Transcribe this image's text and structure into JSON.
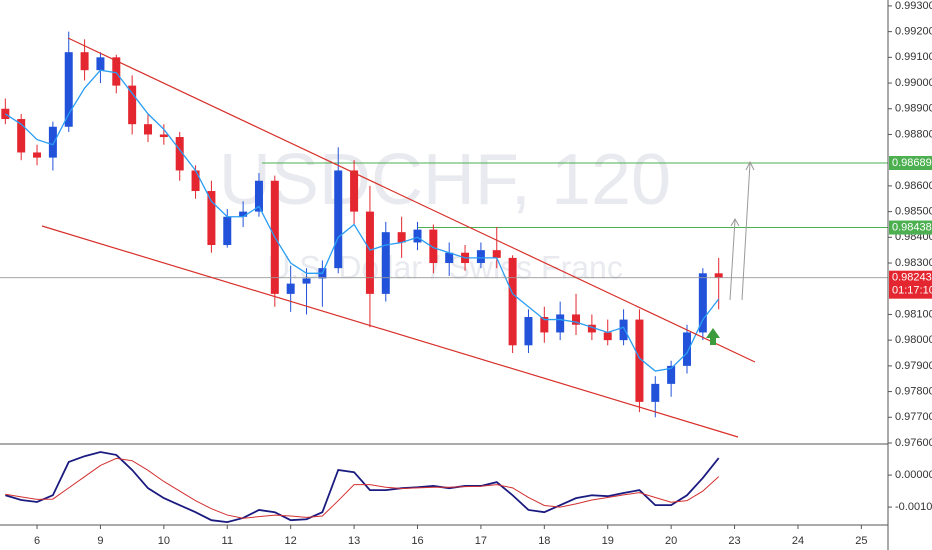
{
  "chart_data": {
    "type": "candlestick",
    "watermark": "USDCHF, 120",
    "watermark_subtitle": "U.S. Dollar / Swiss Franc",
    "up_color": "#2152d9",
    "down_color": "#e3262f",
    "ma_color": "#2a9df4",
    "x": [
      -0.5,
      -0.25,
      0,
      0.25,
      0.5,
      0.75,
      1,
      1.25,
      1.5,
      1.75,
      2,
      2.25,
      2.5,
      2.75,
      3,
      3.25,
      3.5,
      3.75,
      4,
      4.25,
      4.5,
      4.75,
      5,
      5.25,
      5.5,
      5.75,
      6,
      6.25,
      6.5,
      6.75,
      7,
      7.25,
      7.5,
      7.75,
      8,
      8.25,
      8.5,
      8.75,
      9,
      9.25,
      9.5,
      9.75,
      10,
      10.25,
      10.5,
      10.75
    ],
    "open": [
      0.989,
      0.9886,
      0.9873,
      0.9871,
      0.9883,
      0.9912,
      0.9905,
      0.991,
      0.9899,
      0.9884,
      0.988,
      0.9879,
      0.9866,
      0.9858,
      0.9837,
      0.9848,
      0.985,
      0.9862,
      0.9818,
      0.9822,
      0.9824,
      0.9828,
      0.9866,
      0.985,
      0.9818,
      0.9842,
      0.9838,
      0.9843,
      0.983,
      0.9834,
      0.983,
      0.9835,
      0.9832,
      0.9798,
      0.9809,
      0.9803,
      0.981,
      0.9806,
      0.9803,
      0.98,
      0.9808,
      0.9776,
      0.9783,
      0.979,
      0.9803,
      0.9826
    ],
    "high": [
      0.9894,
      0.9888,
      0.9876,
      0.9885,
      0.992,
      0.9917,
      0.9912,
      0.9911,
      0.9903,
      0.9888,
      0.9884,
      0.9881,
      0.9868,
      0.9862,
      0.9851,
      0.9854,
      0.9865,
      0.9864,
      0.9829,
      0.9828,
      0.9831,
      0.9875,
      0.987,
      0.986,
      0.9846,
      0.9848,
      0.9846,
      0.9845,
      0.9838,
      0.9837,
      0.9838,
      0.9844,
      0.9833,
      0.9812,
      0.9813,
      0.9815,
      0.9818,
      0.981,
      0.9808,
      0.9812,
      0.9812,
      0.9786,
      0.9792,
      0.9806,
      0.9828,
      0.9832
    ],
    "low": [
      0.9884,
      0.987,
      0.9868,
      0.9866,
      0.9881,
      0.9901,
      0.99,
      0.9896,
      0.988,
      0.9877,
      0.9876,
      0.9862,
      0.9855,
      0.9834,
      0.9836,
      0.9844,
      0.9848,
      0.9813,
      0.9811,
      0.981,
      0.9813,
      0.9826,
      0.9845,
      0.9805,
      0.9815,
      0.9832,
      0.9835,
      0.9826,
      0.9825,
      0.9827,
      0.9828,
      0.9828,
      0.9795,
      0.9795,
      0.9799,
      0.98,
      0.9802,
      0.98,
      0.9798,
      0.9798,
      0.9772,
      0.977,
      0.9778,
      0.9787,
      0.98,
      0.9812
    ],
    "close": [
      0.9886,
      0.9873,
      0.9871,
      0.9883,
      0.9912,
      0.9905,
      0.991,
      0.9899,
      0.9884,
      0.988,
      0.9879,
      0.9866,
      0.9858,
      0.9837,
      0.9848,
      0.985,
      0.9862,
      0.9818,
      0.9822,
      0.9824,
      0.9828,
      0.9866,
      0.985,
      0.9818,
      0.9842,
      0.9838,
      0.9843,
      0.983,
      0.9834,
      0.983,
      0.9835,
      0.9832,
      0.9798,
      0.9809,
      0.9803,
      0.981,
      0.9806,
      0.9803,
      0.98,
      0.9808,
      0.9776,
      0.9783,
      0.979,
      0.9803,
      0.9826,
      0.98243
    ],
    "ma": [
      0.9888,
      0.9884,
      0.9878,
      0.9876,
      0.9888,
      0.9898,
      0.9905,
      0.9904,
      0.9896,
      0.9888,
      0.9882,
      0.9874,
      0.9866,
      0.9854,
      0.9848,
      0.9848,
      0.9852,
      0.984,
      0.983,
      0.9826,
      0.9826,
      0.984,
      0.9845,
      0.9835,
      0.9837,
      0.9838,
      0.984,
      0.9836,
      0.9834,
      0.9832,
      0.9832,
      0.9832,
      0.9818,
      0.9813,
      0.9808,
      0.9808,
      0.9807,
      0.9805,
      0.9803,
      0.9805,
      0.9793,
      0.9788,
      0.9789,
      0.9795,
      0.9808,
      0.9816
    ],
    "xlim": [
      -0.584,
      13.42
    ],
    "xticks": [
      {
        "value": 0,
        "label": "6"
      },
      {
        "value": 1,
        "label": "9"
      },
      {
        "value": 2,
        "label": "10"
      },
      {
        "value": 3,
        "label": "11"
      },
      {
        "value": 4,
        "label": "12"
      },
      {
        "value": 5,
        "label": "13"
      },
      {
        "value": 6,
        "label": "16"
      },
      {
        "value": 7,
        "label": "17"
      },
      {
        "value": 8,
        "label": "18"
      },
      {
        "value": 9,
        "label": "19"
      },
      {
        "value": 10,
        "label": "20"
      },
      {
        "value": 11,
        "label": "23"
      },
      {
        "value": 12,
        "label": "24"
      },
      {
        "value": 13,
        "label": "25"
      }
    ],
    "ylim": [
      0.976,
      0.99323
    ],
    "yticks": [
      {
        "value": 0.993,
        "label": "0.99300"
      },
      {
        "value": 0.992,
        "label": "0.99200"
      },
      {
        "value": 0.991,
        "label": "0.99100"
      },
      {
        "value": 0.99,
        "label": "0.99000"
      },
      {
        "value": 0.989,
        "label": "0.98900"
      },
      {
        "value": 0.988,
        "label": "0.98800"
      },
      {
        "value": 0.986,
        "label": "0.98600"
      },
      {
        "value": 0.985,
        "label": "0.98500"
      },
      {
        "value": 0.984,
        "label": "0.98400"
      },
      {
        "value": 0.983,
        "label": "0.98300"
      },
      {
        "value": 0.981,
        "label": "0.98100"
      },
      {
        "value": 0.98,
        "label": "0.98000"
      },
      {
        "value": 0.979,
        "label": "0.97900"
      },
      {
        "value": 0.978,
        "label": "0.97800"
      },
      {
        "value": 0.977,
        "label": "0.97700"
      },
      {
        "value": 0.976,
        "label": "0.97600"
      }
    ],
    "levels": [
      {
        "value": 0.98689,
        "color": "#4caf50"
      },
      {
        "value": 0.98438,
        "color": "#4caf50"
      }
    ],
    "last_price": 0.98243,
    "countdown": "01:17:10",
    "oscillator": {
      "ylim": [
        -0.00156,
        0.00094
      ],
      "yticks": [
        {
          "value": 0,
          "label": "0.00000"
        },
        {
          "value": -0.001,
          "label": "-0.00100"
        }
      ],
      "lines": [
        {
          "color": "#1a1a80",
          "values": [
            -0.00063,
            -0.00078,
            -0.00084,
            -0.00063,
            0.00041,
            0.00059,
            0.00072,
            0.00063,
            0.00016,
            -0.00041,
            -0.00072,
            -0.00094,
            -0.00116,
            -0.00141,
            -0.00147,
            -0.00134,
            -0.00109,
            -0.00116,
            -0.00141,
            -0.00138,
            -0.00116,
            0.00016,
            9e-05,
            -0.00047,
            -0.00047,
            -0.00041,
            -0.00038,
            -0.00034,
            -0.00041,
            -0.00034,
            -0.00034,
            -0.00022,
            -0.00063,
            -0.00109,
            -0.00116,
            -0.00094,
            -0.00072,
            -0.00063,
            -0.00066,
            -0.00056,
            -0.00047,
            -0.00094,
            -0.00094,
            -0.00063,
            -9e-05,
            0.00053
          ]
        },
        {
          "color": "#d32f2f",
          "values": [
            -0.0006,
            -0.00068,
            -0.00076,
            -0.00075,
            -0.0004,
            -5e-05,
            0.0003,
            0.00052,
            0.00045,
            0.00015,
            -0.0002,
            -0.0005,
            -0.0008,
            -0.00105,
            -0.00125,
            -0.00135,
            -0.0013,
            -0.00125,
            -0.00128,
            -0.00132,
            -0.00128,
            -0.0008,
            -0.0003,
            -0.0003,
            -0.00038,
            -0.00042,
            -0.0004,
            -0.00038,
            -0.00038,
            -0.00036,
            -0.00035,
            -0.0003,
            -0.0004,
            -0.0007,
            -0.00095,
            -0.001,
            -0.0009,
            -0.00078,
            -0.0007,
            -0.00062,
            -0.00055,
            -0.0007,
            -0.00085,
            -0.0008,
            -0.0005,
            -5e-05
          ]
        }
      ]
    }
  }
}
